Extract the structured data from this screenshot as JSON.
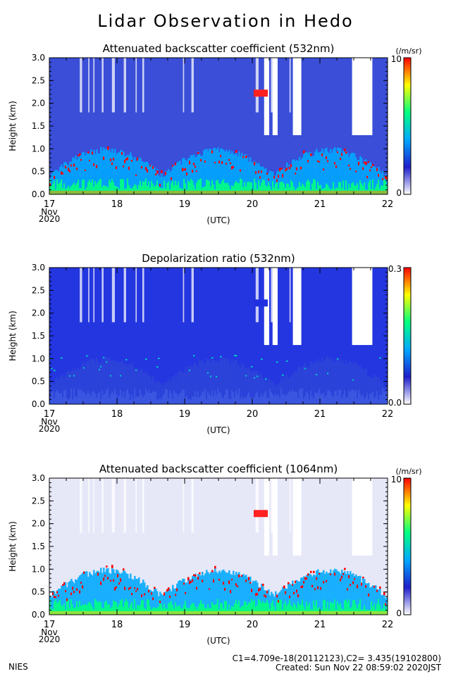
{
  "title": "Lidar Observation in Hedo",
  "footer": {
    "org": "NIES",
    "constants": "C1=4.709e-18(20112123),C2= 3.435(19102800)",
    "created": "Created: Sun Nov 22 08:59:02 2020JST"
  },
  "chart_data": [
    {
      "type": "heatmap",
      "title": "Attenuated backscatter coefficient (532nm)",
      "ylabel": "Height (km)",
      "xlabel": "(UTC)",
      "x_ticks": [
        "17",
        "18",
        "19",
        "20",
        "21",
        "22"
      ],
      "x_sublabels": [
        "Nov",
        "2020"
      ],
      "y_ticks": [
        "0.0",
        "0.5",
        "1.0",
        "1.5",
        "2.0",
        "2.5",
        "3.0"
      ],
      "xlim": [
        17,
        22
      ],
      "ylim": [
        0,
        3
      ],
      "colorbar": {
        "unit": "(/m/sr)",
        "max_label": "10",
        "min_label": "0",
        "colors": [
          "#ffffff",
          "#1e1ecc",
          "#00a8ff",
          "#00ff80",
          "#ffff00",
          "#ff0000"
        ]
      },
      "background_color": "#3a4ed8"
    },
    {
      "type": "heatmap",
      "title": "Depolarization ratio (532nm)",
      "ylabel": "Height (km)",
      "xlabel": "(UTC)",
      "x_ticks": [
        "17",
        "18",
        "19",
        "20",
        "21",
        "22"
      ],
      "x_sublabels": [
        "Nov",
        "2020"
      ],
      "y_ticks": [
        "0.0",
        "0.5",
        "1.0",
        "1.5",
        "2.0",
        "2.5",
        "3.0"
      ],
      "xlim": [
        17,
        22
      ],
      "ylim": [
        0,
        3
      ],
      "colorbar": {
        "unit": "",
        "max_label": "0.3",
        "min_label": "0.0",
        "colors": [
          "#ffffff",
          "#1e1ecc",
          "#00a8ff",
          "#00ff80",
          "#ffff00",
          "#ff0000"
        ]
      },
      "background_color": "#2436e0"
    },
    {
      "type": "heatmap",
      "title": "Attenuated backscatter coefficient (1064nm)",
      "ylabel": "Height (km)",
      "xlabel": "(UTC)",
      "x_ticks": [
        "17",
        "18",
        "19",
        "20",
        "21",
        "22"
      ],
      "x_sublabels": [
        "Nov",
        "2020"
      ],
      "y_ticks": [
        "0.0",
        "0.5",
        "1.0",
        "1.5",
        "2.0",
        "2.5",
        "3.0"
      ],
      "xlim": [
        17,
        22
      ],
      "ylim": [
        0,
        3
      ],
      "colorbar": {
        "unit": "(/m/sr)",
        "max_label": "10",
        "min_label": "0",
        "colors": [
          "#ffffff",
          "#1e1ecc",
          "#00a8ff",
          "#00ff80",
          "#ffff00",
          "#ff0000"
        ]
      },
      "background_color": "#e6e8f8"
    }
  ]
}
